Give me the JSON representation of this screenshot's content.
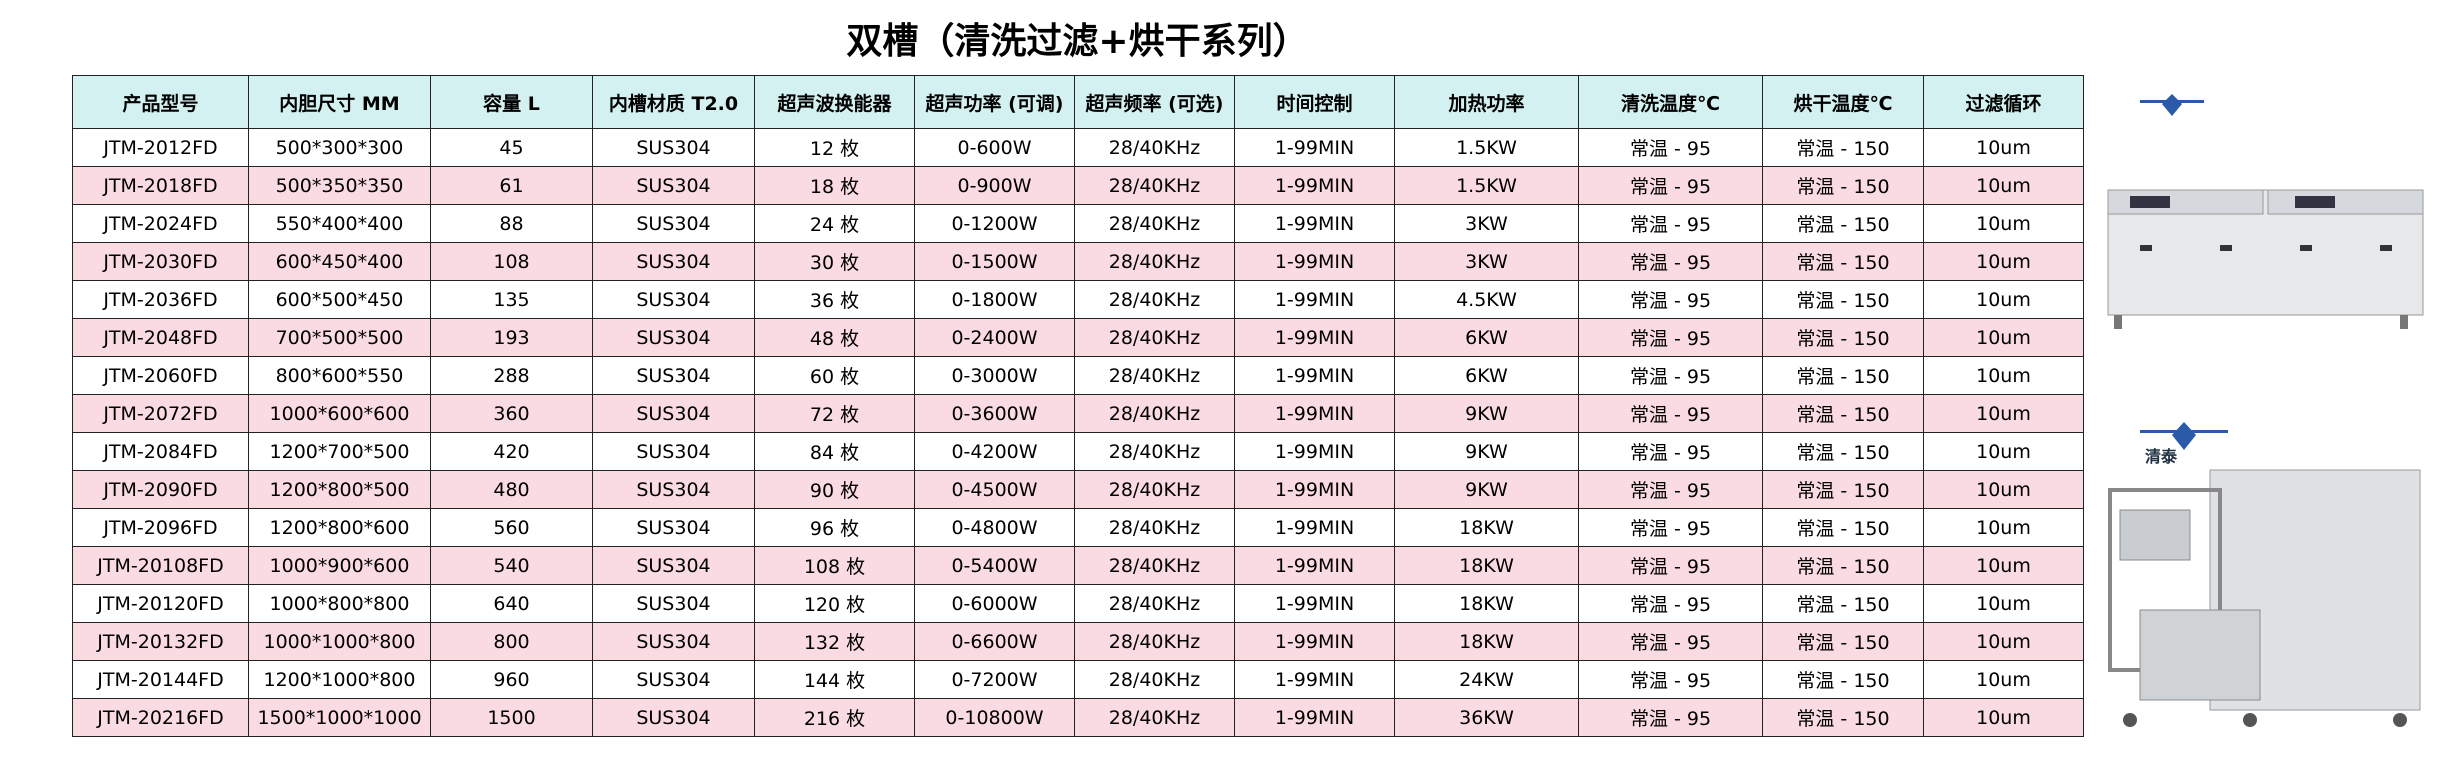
{
  "header": {
    "title": "双槽（清洗过滤+烘干系列）"
  },
  "table": {
    "columns": [
      "产品型号",
      "内胆尺寸 MM",
      "容量 L",
      "内槽材质 T2.0",
      "超声波换能器",
      "超声功率 (可调)",
      "超声频率 (可选)",
      "时间控制",
      "加热功率",
      "清洗温度℃",
      "烘干温度℃",
      "过滤循环"
    ],
    "rows": [
      [
        "JTM-2012FD",
        "500*300*300",
        "45",
        "SUS304",
        "12 枚",
        "0-600W",
        "28/40KHz",
        "1-99MIN",
        "1.5KW",
        "常温 - 95",
        "常温 - 150",
        "10um"
      ],
      [
        "JTM-2018FD",
        "500*350*350",
        "61",
        "SUS304",
        "18 枚",
        "0-900W",
        "28/40KHz",
        "1-99MIN",
        "1.5KW",
        "常温 - 95",
        "常温 - 150",
        "10um"
      ],
      [
        "JTM-2024FD",
        "550*400*400",
        "88",
        "SUS304",
        "24 枚",
        "0-1200W",
        "28/40KHz",
        "1-99MIN",
        "3KW",
        "常温 - 95",
        "常温 - 150",
        "10um"
      ],
      [
        "JTM-2030FD",
        "600*450*400",
        "108",
        "SUS304",
        "30 枚",
        "0-1500W",
        "28/40KHz",
        "1-99MIN",
        "3KW",
        "常温 - 95",
        "常温 - 150",
        "10um"
      ],
      [
        "JTM-2036FD",
        "600*500*450",
        "135",
        "SUS304",
        "36 枚",
        "0-1800W",
        "28/40KHz",
        "1-99MIN",
        "4.5KW",
        "常温 - 95",
        "常温 - 150",
        "10um"
      ],
      [
        "JTM-2048FD",
        "700*500*500",
        "193",
        "SUS304",
        "48 枚",
        "0-2400W",
        "28/40KHz",
        "1-99MIN",
        "6KW",
        "常温 - 95",
        "常温 - 150",
        "10um"
      ],
      [
        "JTM-2060FD",
        "800*600*550",
        "288",
        "SUS304",
        "60 枚",
        "0-3000W",
        "28/40KHz",
        "1-99MIN",
        "6KW",
        "常温 - 95",
        "常温 - 150",
        "10um"
      ],
      [
        "JTM-2072FD",
        "1000*600*600",
        "360",
        "SUS304",
        "72 枚",
        "0-3600W",
        "28/40KHz",
        "1-99MIN",
        "9KW",
        "常温 - 95",
        "常温 - 150",
        "10um"
      ],
      [
        "JTM-2084FD",
        "1200*700*500",
        "420",
        "SUS304",
        "84 枚",
        "0-4200W",
        "28/40KHz",
        "1-99MIN",
        "9KW",
        "常温 - 95",
        "常温 - 150",
        "10um"
      ],
      [
        "JTM-2090FD",
        "1200*800*500",
        "480",
        "SUS304",
        "90 枚",
        "0-4500W",
        "28/40KHz",
        "1-99MIN",
        "9KW",
        "常温 - 95",
        "常温 - 150",
        "10um"
      ],
      [
        "JTM-2096FD",
        "1200*800*600",
        "560",
        "SUS304",
        "96 枚",
        "0-4800W",
        "28/40KHz",
        "1-99MIN",
        "18KW",
        "常温 - 95",
        "常温 - 150",
        "10um"
      ],
      [
        "JTM-20108FD",
        "1000*900*600",
        "540",
        "SUS304",
        "108 枚",
        "0-5400W",
        "28/40KHz",
        "1-99MIN",
        "18KW",
        "常温 - 95",
        "常温 - 150",
        "10um"
      ],
      [
        "JTM-20120FD",
        "1000*800*800",
        "640",
        "SUS304",
        "120 枚",
        "0-6000W",
        "28/40KHz",
        "1-99MIN",
        "18KW",
        "常温 - 95",
        "常温 - 150",
        "10um"
      ],
      [
        "JTM-20132FD",
        "1000*1000*800",
        "800",
        "SUS304",
        "132 枚",
        "0-6600W",
        "28/40KHz",
        "1-99MIN",
        "18KW",
        "常温 - 95",
        "常温 - 150",
        "10um"
      ],
      [
        "JTM-20144FD",
        "1200*1000*800",
        "960",
        "SUS304",
        "144 枚",
        "0-7200W",
        "28/40KHz",
        "1-99MIN",
        "24KW",
        "常温 - 95",
        "常温 - 150",
        "10um"
      ],
      [
        "JTM-20216FD",
        "1500*1000*1000",
        "1500",
        "SUS304",
        "216 枚",
        "0-10800W",
        "28/40KHz",
        "1-99MIN",
        "36KW",
        "常温 - 95",
        "常温 - 150",
        "10um"
      ]
    ]
  },
  "logo": {
    "text": "清泰"
  }
}
